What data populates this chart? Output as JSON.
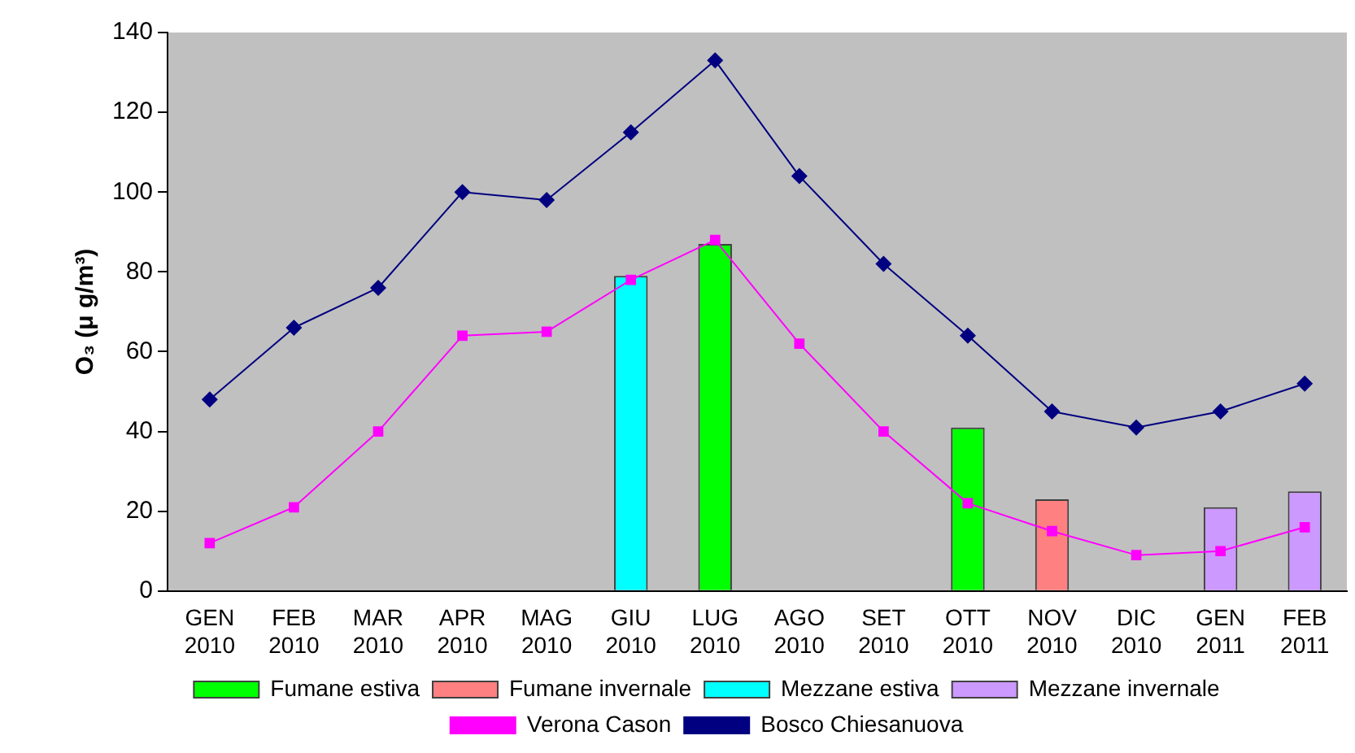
{
  "chart_data": {
    "type": "bar",
    "ylabel": "O₃ (μ g/m³)",
    "categories": [
      "GEN 2010",
      "FEB 2010",
      "MAR 2010",
      "APR 2010",
      "MAG 2010",
      "GIU 2010",
      "LUG 2010",
      "AGO 2010",
      "SET 2010",
      "OTT 2010",
      "NOV 2010",
      "DIC 2010",
      "GEN 2011",
      "FEB 2011"
    ],
    "ylim": [
      0,
      140
    ],
    "yticks": [
      0,
      20,
      40,
      60,
      80,
      100,
      120,
      140
    ],
    "grid": false,
    "legend": "bottom",
    "series": [
      {
        "name": "Fumane estiva",
        "color": "#00ff00",
        "values": [
          null,
          null,
          null,
          null,
          null,
          null,
          87,
          null,
          null,
          41,
          null,
          null,
          null,
          null
        ]
      },
      {
        "name": "Fumane invernale",
        "color": "#ff8080",
        "values": [
          null,
          null,
          null,
          null,
          null,
          null,
          null,
          null,
          null,
          null,
          23,
          null,
          null,
          null
        ]
      },
      {
        "name": "Mezzane estiva",
        "color": "#00ffff",
        "values": [
          null,
          null,
          null,
          null,
          null,
          79,
          null,
          null,
          null,
          null,
          null,
          null,
          null,
          null
        ]
      },
      {
        "name": "Mezzane invernale",
        "color": "#cc99ff",
        "values": [
          null,
          null,
          null,
          null,
          null,
          null,
          null,
          null,
          null,
          null,
          null,
          null,
          21,
          25
        ]
      },
      {
        "name": "Verona Cason",
        "type": "line",
        "marker": "square",
        "color": "#ff00ff",
        "values": [
          12,
          21,
          40,
          64,
          65,
          78,
          88,
          62,
          40,
          22,
          15,
          9,
          10,
          16
        ]
      },
      {
        "name": "Bosco Chiesanuova",
        "type": "line",
        "marker": "diamond",
        "color": "#000080",
        "values": [
          48,
          66,
          76,
          100,
          98,
          115,
          133,
          104,
          82,
          64,
          45,
          41,
          45,
          52
        ]
      }
    ]
  }
}
